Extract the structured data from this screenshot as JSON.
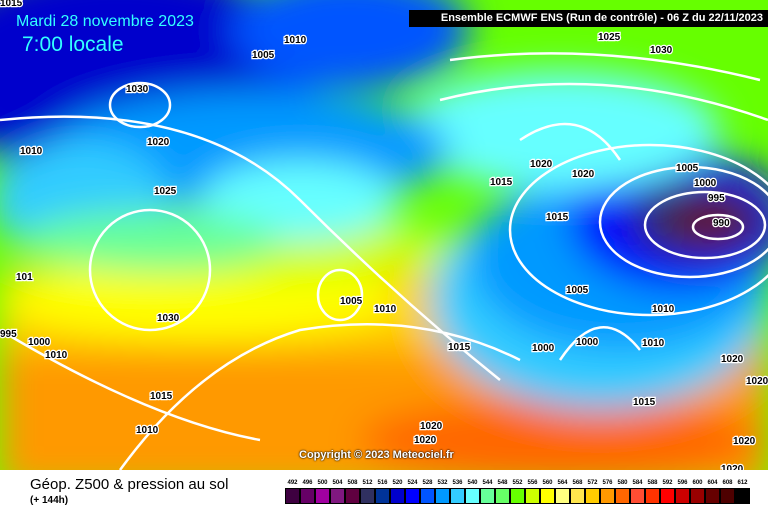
{
  "header": {
    "model_run": "Ensemble ECMWF ENS  (Run de contrôle)  -  06 Z du 22/11/2023"
  },
  "valid": {
    "date": "Mardi 28 novembre 2023",
    "time": "7:00 locale"
  },
  "footer": {
    "title": "Géop. Z500 & pression au sol",
    "lead": "(+ 144h)",
    "copyright": "Copyright © 2023 Meteociel.fr"
  },
  "legend": {
    "values": [
      "492",
      "496",
      "500",
      "504",
      "508",
      "512",
      "516",
      "520",
      "524",
      "528",
      "532",
      "536",
      "540",
      "544",
      "548",
      "552",
      "556",
      "560",
      "564",
      "568",
      "572",
      "576",
      "580",
      "584",
      "588",
      "592",
      "596",
      "600",
      "604",
      "608",
      "612"
    ],
    "colors": [
      "#3e0040",
      "#660066",
      "#a000a0",
      "#801880",
      "#600040",
      "#303060",
      "#003399",
      "#0000cc",
      "#0000ff",
      "#0055ff",
      "#0099ff",
      "#33ccff",
      "#66ffff",
      "#66ff99",
      "#66ff66",
      "#66ff00",
      "#ccff00",
      "#ffff00",
      "#ffff80",
      "#ffe64d",
      "#ffcc00",
      "#ff9900",
      "#ff6600",
      "#ff4d33",
      "#ff3300",
      "#ff0000",
      "#cc0000",
      "#990000",
      "#660000",
      "#4d0000",
      "#000000"
    ]
  },
  "isobar_labels": [
    "1015",
    "1005",
    "1010",
    "1030",
    "1020",
    "1010",
    "1025",
    "1025",
    "1030",
    "1020",
    "1020",
    "1015",
    "1015",
    "1005",
    "1000",
    "995",
    "990",
    "101",
    "1030",
    "1005",
    "1010",
    "1015",
    "1005",
    "1010",
    "1000",
    "1000",
    "1010",
    "1020",
    "1020",
    "1015",
    "1015",
    "1010",
    "1020",
    "1020",
    "1020",
    "1020",
    "995",
    "1000",
    "1010"
  ]
}
